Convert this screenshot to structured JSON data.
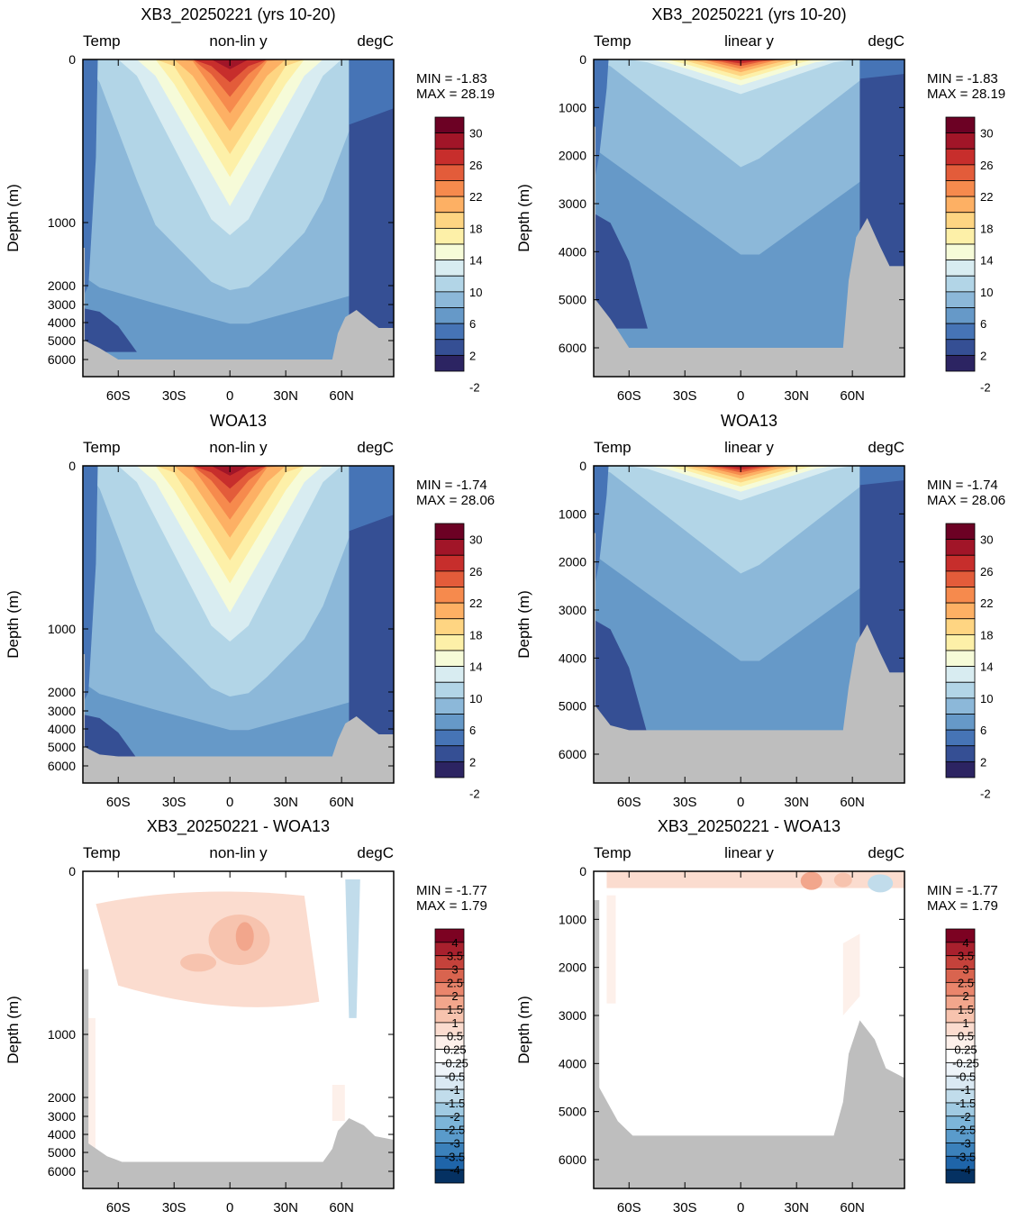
{
  "colors": {
    "land": "#bebebe",
    "temp_scale": [
      "#2c2462",
      "#354f94",
      "#4674b6",
      "#6699c8",
      "#8cb8d9",
      "#b2d5e7",
      "#d8ecf1",
      "#f6fbd8",
      "#fdf0a8",
      "#fed582",
      "#fdb064",
      "#f68a4d",
      "#e35c3a",
      "#c72e2c",
      "#a11528",
      "#6c0124"
    ],
    "diff_scale": [
      "#053162",
      "#0f4c8a",
      "#1f65a9",
      "#3b81bb",
      "#5a9bcb",
      "#7cb5d9",
      "#a0cae2",
      "#c1dceb",
      "#dae9f3",
      "#eef4f9",
      "#ffffff",
      "#ffffff",
      "#fdf0ea",
      "#fbdccf",
      "#f7c3ae",
      "#f2a68c",
      "#e9856c",
      "#d9644f",
      "#c5423b",
      "#a8202d",
      "#7c0222"
    ]
  },
  "panels": [
    {
      "title": "XB3_20250221 (yrs 10-20)",
      "left": "Temp",
      "center": "non-lin y",
      "right": "degC",
      "ylabel": "Depth (m)",
      "stats": [
        "MIN =  -1.83",
        "MAX =  28.19"
      ],
      "yticks": [
        "0",
        "1000",
        "2000",
        "3000",
        "4000",
        "5000",
        "6000"
      ],
      "xticks": [
        "60S",
        "30S",
        "0",
        "30N",
        "60N"
      ],
      "cbar": [
        "30",
        "26",
        "22",
        "18",
        "14",
        "10",
        "6",
        "2",
        "-2"
      ]
    },
    {
      "title": "XB3_20250221 (yrs 10-20)",
      "left": "Temp",
      "center": "linear y",
      "right": "degC",
      "ylabel": "Depth (m)",
      "stats": [
        "MIN =  -1.83",
        "MAX =  28.19"
      ],
      "yticks": [
        "0",
        "1000",
        "2000",
        "3000",
        "4000",
        "5000",
        "6000"
      ],
      "xticks": [
        "60S",
        "30S",
        "0",
        "30N",
        "60N"
      ],
      "cbar": [
        "30",
        "26",
        "22",
        "18",
        "14",
        "10",
        "6",
        "2",
        "-2"
      ]
    },
    {
      "title": "WOA13",
      "left": "Temp",
      "center": "non-lin y",
      "right": "degC",
      "ylabel": "Depth (m)",
      "stats": [
        "MIN =  -1.74",
        "MAX =  28.06"
      ],
      "yticks": [
        "0",
        "1000",
        "2000",
        "3000",
        "4000",
        "5000",
        "6000"
      ],
      "xticks": [
        "60S",
        "30S",
        "0",
        "30N",
        "60N"
      ],
      "cbar": [
        "30",
        "26",
        "22",
        "18",
        "14",
        "10",
        "6",
        "2",
        "-2"
      ]
    },
    {
      "title": "WOA13",
      "left": "Temp",
      "center": "linear y",
      "right": "degC",
      "ylabel": "Depth (m)",
      "stats": [
        "MIN =  -1.74",
        "MAX =  28.06"
      ],
      "yticks": [
        "0",
        "1000",
        "2000",
        "3000",
        "4000",
        "5000",
        "6000"
      ],
      "xticks": [
        "60S",
        "30S",
        "0",
        "30N",
        "60N"
      ],
      "cbar": [
        "30",
        "26",
        "22",
        "18",
        "14",
        "10",
        "6",
        "2",
        "-2"
      ]
    },
    {
      "title": "XB3_20250221 - WOA13",
      "left": "Temp",
      "center": "non-lin y",
      "right": "degC",
      "ylabel": "Depth (m)",
      "stats": [
        "MIN =  -1.77",
        "MAX =    1.79"
      ],
      "yticks": [
        "0",
        "1000",
        "2000",
        "3000",
        "4000",
        "5000",
        "6000"
      ],
      "xticks": [
        "60S",
        "30S",
        "0",
        "30N",
        "60N"
      ],
      "cbar": [
        "4",
        "3.5",
        "3",
        "2.5",
        "2",
        "1.5",
        "1",
        "0.5",
        "0.25",
        "-0.25",
        "-0.5",
        "-1",
        "-1.5",
        "-2",
        "-2.5",
        "-3",
        "-3.5",
        "-4"
      ]
    },
    {
      "title": "XB3_20250221 - WOA13",
      "left": "Temp",
      "center": "linear y",
      "right": "degC",
      "ylabel": "Depth (m)",
      "stats": [
        "MIN =  -1.77",
        "MAX =    1.79"
      ],
      "yticks": [
        "0",
        "1000",
        "2000",
        "3000",
        "4000",
        "5000",
        "6000"
      ],
      "xticks": [
        "60S",
        "30S",
        "0",
        "30N",
        "60N"
      ],
      "cbar": [
        "4",
        "3.5",
        "3",
        "2.5",
        "2",
        "1.5",
        "1",
        "0.5",
        "0.25",
        "-0.25",
        "-0.5",
        "-1",
        "-1.5",
        "-2",
        "-2.5",
        "-3",
        "-3.5",
        "-4"
      ]
    }
  ],
  "chart_data": [
    {
      "type": "heatmap",
      "title": "XB3_20250221 (yrs 10-20)",
      "variable": "Temp",
      "units": "degC",
      "y_scale": "non-lin y",
      "ylabel": "Depth (m)",
      "x_ticks": [
        "60S",
        "30S",
        "0",
        "30N",
        "60N"
      ],
      "y_ticks": [
        0,
        1000,
        2000,
        3000,
        4000,
        5000,
        6000
      ],
      "min": -1.83,
      "max": 28.19,
      "levels": [
        -2,
        2,
        6,
        10,
        14,
        18,
        22,
        26,
        30
      ]
    },
    {
      "type": "heatmap",
      "title": "XB3_20250221 (yrs 10-20)",
      "variable": "Temp",
      "units": "degC",
      "y_scale": "linear y",
      "ylabel": "Depth (m)",
      "x_ticks": [
        "60S",
        "30S",
        "0",
        "30N",
        "60N"
      ],
      "y_ticks": [
        0,
        1000,
        2000,
        3000,
        4000,
        5000,
        6000
      ],
      "min": -1.83,
      "max": 28.19,
      "levels": [
        -2,
        2,
        6,
        10,
        14,
        18,
        22,
        26,
        30
      ]
    },
    {
      "type": "heatmap",
      "title": "WOA13",
      "variable": "Temp",
      "units": "degC",
      "y_scale": "non-lin y",
      "ylabel": "Depth (m)",
      "x_ticks": [
        "60S",
        "30S",
        "0",
        "30N",
        "60N"
      ],
      "y_ticks": [
        0,
        1000,
        2000,
        3000,
        4000,
        5000,
        6000
      ],
      "min": -1.74,
      "max": 28.06,
      "levels": [
        -2,
        2,
        6,
        10,
        14,
        18,
        22,
        26,
        30
      ]
    },
    {
      "type": "heatmap",
      "title": "WOA13",
      "variable": "Temp",
      "units": "degC",
      "y_scale": "linear y",
      "ylabel": "Depth (m)",
      "x_ticks": [
        "60S",
        "30S",
        "0",
        "30N",
        "60N"
      ],
      "y_ticks": [
        0,
        1000,
        2000,
        3000,
        4000,
        5000,
        6000
      ],
      "min": -1.74,
      "max": 28.06,
      "levels": [
        -2,
        2,
        6,
        10,
        14,
        18,
        22,
        26,
        30
      ]
    },
    {
      "type": "heatmap",
      "title": "XB3_20250221 - WOA13",
      "variable": "Temp",
      "units": "degC",
      "y_scale": "non-lin y",
      "ylabel": "Depth (m)",
      "x_ticks": [
        "60S",
        "30S",
        "0",
        "30N",
        "60N"
      ],
      "y_ticks": [
        0,
        1000,
        2000,
        3000,
        4000,
        5000,
        6000
      ],
      "min": -1.77,
      "max": 1.79,
      "levels": [
        -4,
        -3.5,
        -3,
        -2.5,
        -2,
        -1.5,
        -1,
        -0.5,
        -0.25,
        0.25,
        0.5,
        1,
        1.5,
        2,
        2.5,
        3,
        3.5,
        4
      ]
    },
    {
      "type": "heatmap",
      "title": "XB3_20250221 - WOA13",
      "variable": "Temp",
      "units": "degC",
      "y_scale": "linear y",
      "ylabel": "Depth (m)",
      "x_ticks": [
        "60S",
        "30S",
        "0",
        "30N",
        "60N"
      ],
      "y_ticks": [
        0,
        1000,
        2000,
        3000,
        4000,
        5000,
        6000
      ],
      "min": -1.77,
      "max": 1.79,
      "levels": [
        -4,
        -3.5,
        -3,
        -2.5,
        -2,
        -1.5,
        -1,
        -0.5,
        -0.25,
        0.25,
        0.5,
        1,
        1.5,
        2,
        2.5,
        3,
        3.5,
        4
      ]
    }
  ]
}
